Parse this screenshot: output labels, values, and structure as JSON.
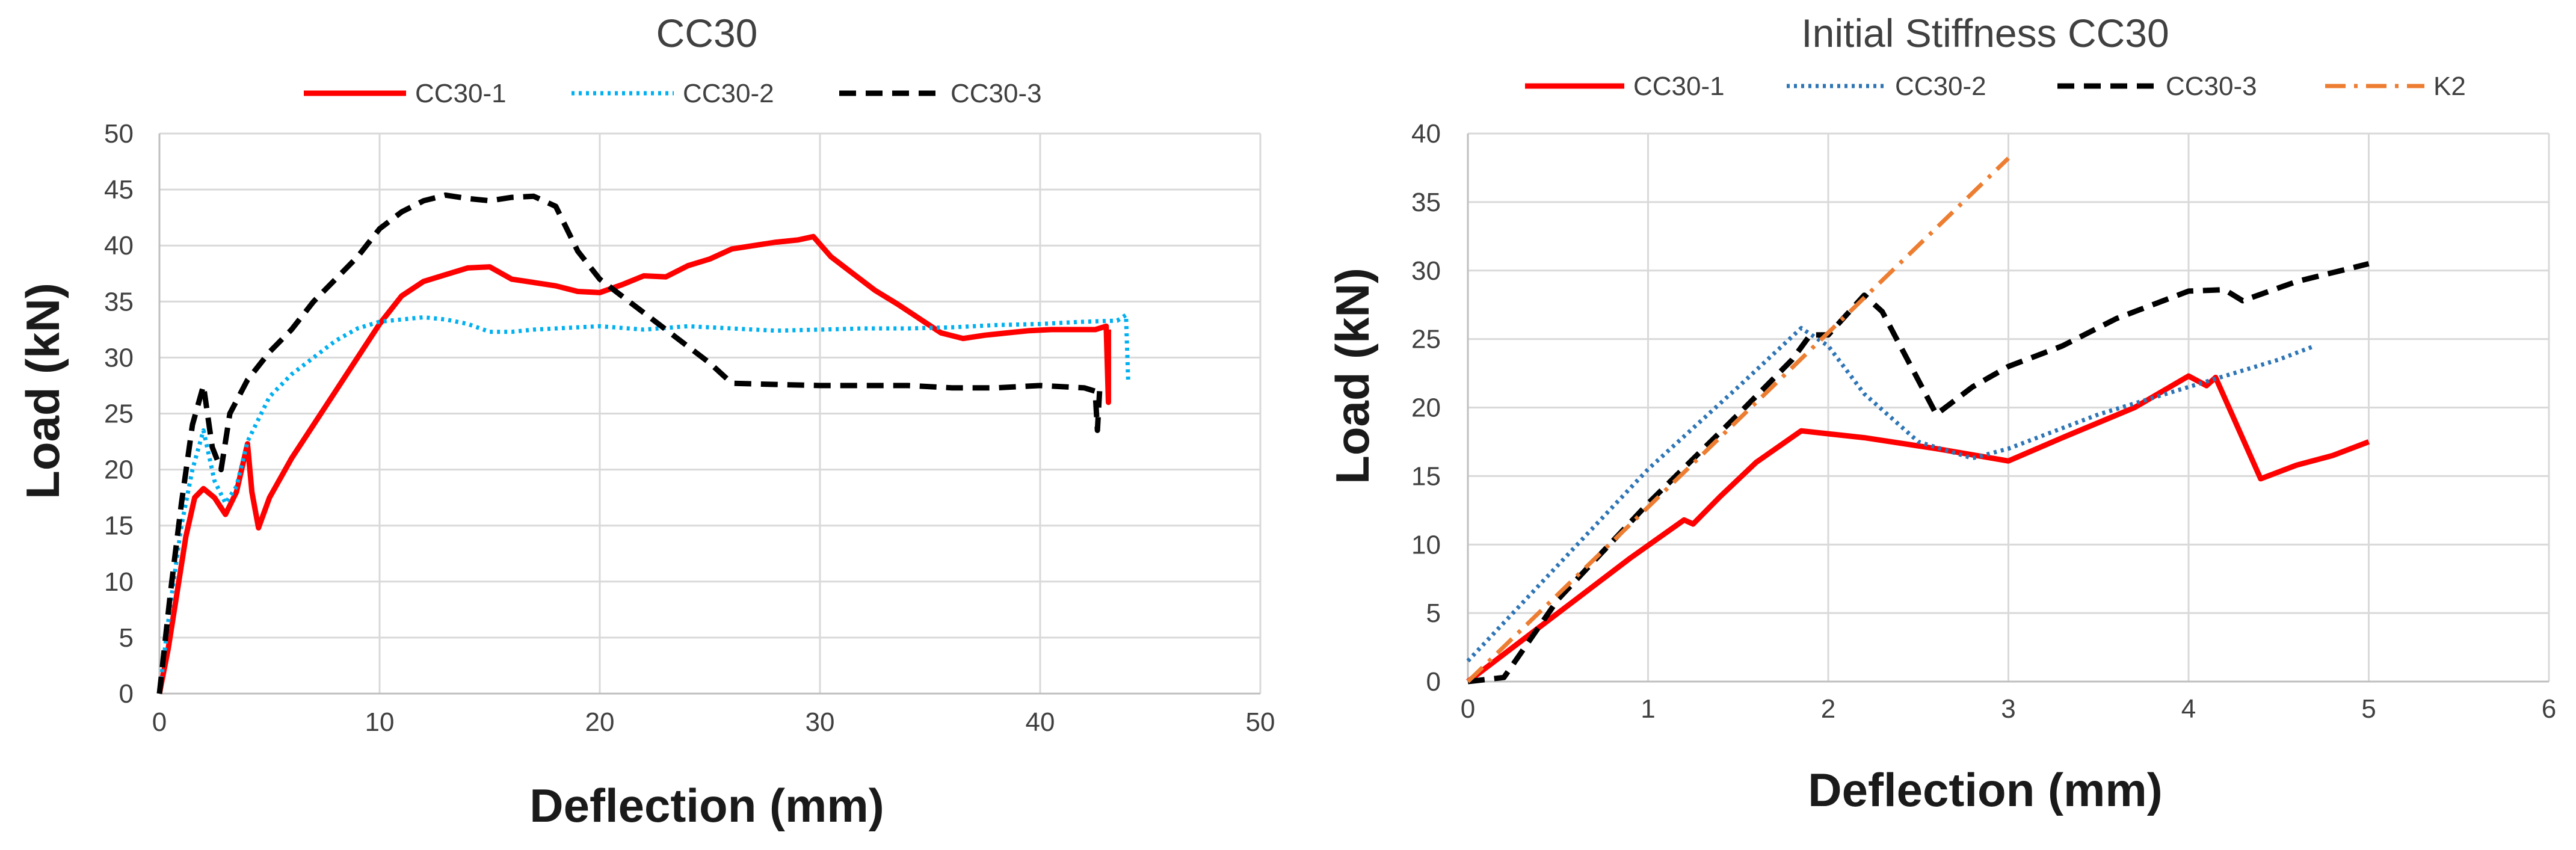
{
  "chart_data": [
    {
      "type": "line",
      "title": "CC30",
      "xlabel": "Deflection (mm)",
      "ylabel": "Load (kN)",
      "xlim": [
        0,
        50
      ],
      "ylim": [
        0,
        50
      ],
      "xticks": [
        0,
        10,
        20,
        30,
        40,
        50
      ],
      "yticks": [
        0,
        5,
        10,
        15,
        20,
        25,
        30,
        35,
        40,
        45,
        50
      ],
      "grid": true,
      "legend_position": "top",
      "series": [
        {
          "name": "CC30-1",
          "color": "#ff0000",
          "style": "solid",
          "x": [
            0,
            0.4,
            0.8,
            1.2,
            1.6,
            2.0,
            2.5,
            3.0,
            3.5,
            4.0,
            4.2,
            4.5,
            5.0,
            6.0,
            7.0,
            8.0,
            9.0,
            10.0,
            11.0,
            12.0,
            13.0,
            14.0,
            15.0,
            16.0,
            17.0,
            18.0,
            19.0,
            20.0,
            21.0,
            22.0,
            23.0,
            24.0,
            25.0,
            26.0,
            27.0,
            28.0,
            29.0,
            29.7,
            30.5,
            31.5,
            32.5,
            33.5,
            34.5,
            35.5,
            36.5,
            37.5,
            38.5,
            39.5,
            40.5,
            41.5,
            42.5,
            43.0,
            43.1,
            43.1
          ],
          "y": [
            0,
            4,
            9,
            14,
            17.5,
            18.3,
            17.5,
            16,
            18,
            22.3,
            18,
            14.8,
            17.5,
            21,
            24,
            27,
            30,
            33,
            35.5,
            36.8,
            37.4,
            38,
            38.1,
            37,
            36.7,
            36.4,
            35.9,
            35.8,
            36.5,
            37.3,
            37.2,
            38.2,
            38.8,
            39.7,
            40,
            40.3,
            40.5,
            40.8,
            39,
            37.5,
            36,
            34.8,
            33.5,
            32.2,
            31.7,
            32,
            32.2,
            32.4,
            32.5,
            32.5,
            32.5,
            32.8,
            26,
            32.5
          ]
        },
        {
          "name": "CC30-2",
          "color": "#00b0f0",
          "style": "dotted",
          "x": [
            0,
            0.5,
            1.0,
            1.5,
            2.0,
            2.5,
            3.0,
            3.5,
            4.0,
            5.0,
            6.0,
            7.0,
            8.0,
            9.0,
            10.0,
            11.0,
            12.0,
            13.0,
            14.0,
            15.0,
            16.0,
            17.0,
            18.0,
            20.0,
            22.0,
            24.0,
            26.0,
            28.0,
            30.0,
            32.0,
            34.0,
            36.0,
            38.0,
            40.0,
            42.0,
            43.5,
            43.9,
            44.0
          ],
          "y": [
            0,
            8,
            15,
            20,
            23.5,
            19,
            17,
            18.5,
            22.5,
            26.5,
            28.5,
            30,
            31.5,
            32.6,
            33.2,
            33.4,
            33.6,
            33.4,
            33,
            32.3,
            32.3,
            32.5,
            32.6,
            32.8,
            32.5,
            32.8,
            32.6,
            32.4,
            32.5,
            32.6,
            32.6,
            32.7,
            32.9,
            33,
            33.2,
            33.3,
            33.8,
            27.8
          ]
        },
        {
          "name": "CC30-3",
          "color": "#000000",
          "style": "dashed",
          "x": [
            0,
            0.5,
            1.0,
            1.5,
            2.0,
            2.4,
            2.8,
            3.2,
            4.0,
            5.0,
            6.0,
            7.0,
            8.0,
            9.0,
            10.0,
            11.0,
            12.0,
            13.0,
            14.0,
            15.0,
            16.0,
            17.0,
            18.0,
            19.0,
            20.0,
            21.0,
            22.0,
            23.0,
            24.0,
            25.0,
            26.0,
            28.0,
            30.0,
            32.0,
            34.0,
            36.0,
            38.0,
            40.0,
            42.0,
            42.5,
            42.6,
            42.7
          ],
          "y": [
            0,
            9,
            17,
            24,
            27.5,
            22,
            20,
            25,
            28,
            30.5,
            32.5,
            35,
            37,
            39,
            41.5,
            43,
            44,
            44.5,
            44.2,
            44,
            44.3,
            44.4,
            43.5,
            39.5,
            37,
            35.5,
            34,
            32.5,
            31,
            29.5,
            27.7,
            27.6,
            27.5,
            27.5,
            27.5,
            27.3,
            27.3,
            27.5,
            27.3,
            27,
            23.5,
            27
          ]
        }
      ]
    },
    {
      "type": "line",
      "title": "Initial Stiffness CC30",
      "xlabel": "Deflection (mm)",
      "ylabel": "Load (kN)",
      "xlim": [
        0,
        6
      ],
      "ylim": [
        0,
        40
      ],
      "xticks": [
        0,
        1,
        2,
        3,
        4,
        5,
        6
      ],
      "yticks": [
        0,
        5,
        10,
        15,
        20,
        25,
        30,
        35,
        40
      ],
      "grid": true,
      "legend_position": "top",
      "series": [
        {
          "name": "CC30-1",
          "color": "#ff0000",
          "style": "solid",
          "x": [
            0,
            0.3,
            0.6,
            0.9,
            1.2,
            1.25,
            1.4,
            1.6,
            1.85,
            2.2,
            2.6,
            3.0,
            3.3,
            3.7,
            4.0,
            4.1,
            4.15,
            4.4,
            4.6,
            4.8,
            5.0
          ],
          "y": [
            0,
            3,
            6,
            9,
            11.8,
            11.5,
            13.5,
            16,
            18.3,
            17.8,
            17,
            16.1,
            17.8,
            20,
            22.3,
            21.6,
            22.2,
            14.8,
            15.8,
            16.5,
            17.5
          ]
        },
        {
          "name": "CC30-2",
          "color": "#2e75b6",
          "style": "dotted",
          "x": [
            0,
            0.5,
            1.0,
            1.5,
            1.85,
            2.0,
            2.2,
            2.5,
            2.8,
            3.0,
            3.5,
            4.0,
            4.5,
            4.7
          ],
          "y": [
            1.5,
            8.5,
            15.5,
            21.5,
            25.8,
            24.5,
            21,
            17.5,
            16.3,
            17,
            19.5,
            21.5,
            23.5,
            24.5
          ],
          "x_extra": []
        },
        {
          "name": "CC30-3",
          "color": "#000000",
          "style": "dashed",
          "x": [
            0,
            0.2,
            0.5,
            1.0,
            1.5,
            1.8,
            1.9,
            2.0,
            2.2,
            2.3,
            2.6,
            2.8,
            3.0,
            3.3,
            3.6,
            4.0,
            4.2,
            4.3,
            4.6,
            5.0
          ],
          "y": [
            0,
            0.3,
            6,
            13,
            19.5,
            23.5,
            25.3,
            25.3,
            28.2,
            27,
            19.5,
            21.5,
            23,
            24.5,
            26.5,
            28.5,
            28.6,
            27.8,
            29.2,
            30.5
          ]
        },
        {
          "name": "K2",
          "color": "#ed7d31",
          "style": "dashdot",
          "x": [
            0,
            3.0
          ],
          "y": [
            0,
            38.2
          ]
        }
      ]
    }
  ]
}
